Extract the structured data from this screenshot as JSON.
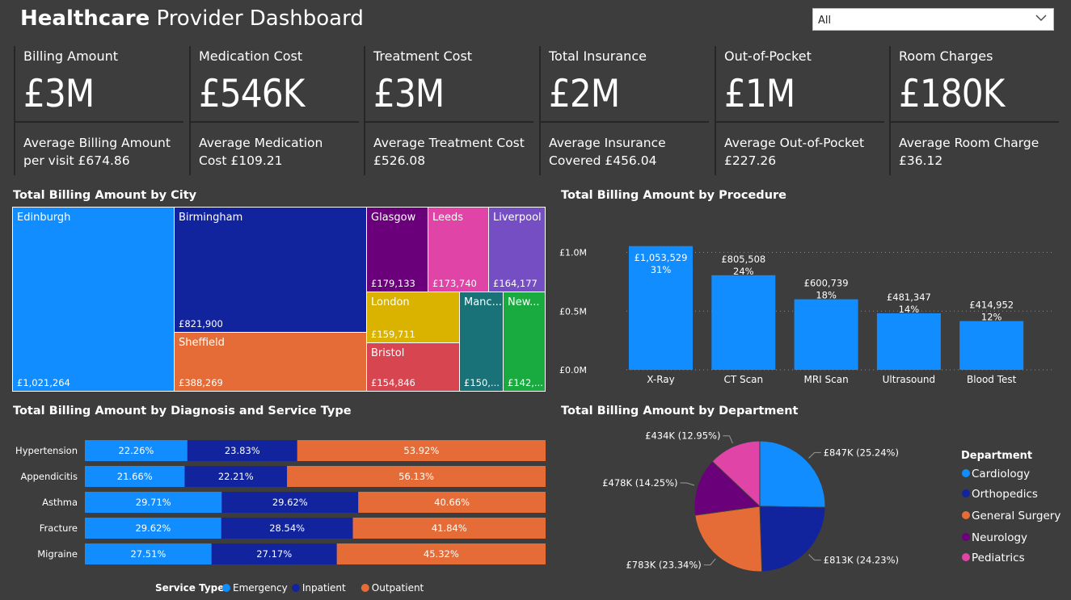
{
  "header": {
    "title_bold": "Healthcare",
    "title_rest": " Provider Dashboard",
    "slicer_value": "All"
  },
  "kpis": [
    {
      "label": "Billing Amount",
      "value": "£3M",
      "sub": "Average Billing Amount per visit £674.86"
    },
    {
      "label": "Medication Cost",
      "value": "£546K",
      "sub": "Average Medication Cost £109.21"
    },
    {
      "label": "Treatment Cost",
      "value": "£3M",
      "sub": "Average Treatment Cost £526.08"
    },
    {
      "label": "Total Insurance",
      "value": "£2M",
      "sub": "Average Insurance Covered £456.04"
    },
    {
      "label": "Out-of-Pocket",
      "value": "£1M",
      "sub": "Average Out-of-Pocket £227.26"
    },
    {
      "label": "Room Charges",
      "value": "£180K",
      "sub": "Average Room Charge £36.12"
    }
  ],
  "colors": {
    "edinburgh": "#118dff",
    "birmingham": "#12239e",
    "sheffield": "#e66c37",
    "glasgow": "#6b007b",
    "leeds": "#e044a7",
    "liverpool": "#744ec2",
    "london": "#d9b300",
    "bristol": "#d64550",
    "manchester": "#197278",
    "newcastle": "#1aab40",
    "emergency": "#118dff",
    "inpatient": "#12239e",
    "outpatient": "#e66c37"
  },
  "chart_data": [
    {
      "type": "treemap",
      "title": "Total Billing Amount by City",
      "items": [
        {
          "name": "Edinburgh",
          "value": 1021264,
          "label": "£1,021,264"
        },
        {
          "name": "Birmingham",
          "value": 821900,
          "label": "£821,900"
        },
        {
          "name": "Sheffield",
          "value": 388269,
          "label": "£388,269"
        },
        {
          "name": "Glasgow",
          "value": 179133,
          "label": "£179,133"
        },
        {
          "name": "Leeds",
          "value": 173740,
          "label": "£173,740"
        },
        {
          "name": "Liverpool",
          "value": 164177,
          "label": "£164,177"
        },
        {
          "name": "London",
          "value": 159711,
          "label": "£159,711"
        },
        {
          "name": "Bristol",
          "value": 154846,
          "label": "£154,846"
        },
        {
          "name": "Manc...",
          "value": 150000,
          "label": "£150,..."
        },
        {
          "name": "New...",
          "value": 142000,
          "label": "£142,..."
        }
      ]
    },
    {
      "type": "bar",
      "title": "Total Billing Amount by Procedure",
      "categories": [
        "X-Ray",
        "CT Scan",
        "MRI Scan",
        "Ultrasound",
        "Blood Test"
      ],
      "values": [
        1053529,
        805508,
        600739,
        481347,
        414952
      ],
      "value_labels": [
        "£1,053,529",
        "£805,508",
        "£600,739",
        "£481,347",
        "£414,952"
      ],
      "pct_labels": [
        "31%",
        "24%",
        "18%",
        "14%",
        "12%"
      ],
      "yticks": [
        0,
        500000,
        1000000
      ],
      "ytick_labels": [
        "£0.0M",
        "£0.5M",
        "£1.0M"
      ],
      "ylim": [
        0,
        1100000
      ],
      "color": "#118dff"
    },
    {
      "type": "bar",
      "stacked": "100%",
      "orientation": "horizontal",
      "title": "Total Billing Amount by Diagnosis and Service Type",
      "categories": [
        "Hypertension",
        "Appendicitis",
        "Asthma",
        "Fracture",
        "Migraine"
      ],
      "series": [
        {
          "name": "Emergency",
          "values": [
            22.26,
            21.66,
            29.71,
            29.62,
            27.51
          ]
        },
        {
          "name": "Inpatient",
          "values": [
            23.83,
            22.21,
            29.62,
            28.54,
            27.17
          ]
        },
        {
          "name": "Outpatient",
          "values": [
            53.92,
            56.13,
            40.66,
            41.84,
            45.32
          ]
        }
      ],
      "legend_title": "Service Type"
    },
    {
      "type": "pie",
      "title": "Total Billing Amount by Department",
      "legend_title": "Department",
      "slices": [
        {
          "name": "Cardiology",
          "value": 847,
          "pct": 25.24,
          "label": "£847K (25.24%)",
          "color": "#118dff"
        },
        {
          "name": "Orthopedics",
          "value": 813,
          "pct": 24.23,
          "label": "£813K (24.23%)",
          "color": "#12239e"
        },
        {
          "name": "General Surgery",
          "value": 783,
          "pct": 23.34,
          "label": "£783K (23.34%)",
          "color": "#e66c37"
        },
        {
          "name": "Neurology",
          "value": 478,
          "pct": 14.25,
          "label": "£478K (14.25%)",
          "color": "#6b007b"
        },
        {
          "name": "Pediatrics",
          "value": 434,
          "pct": 12.95,
          "label": "£434K (12.95%)",
          "color": "#e044a7"
        }
      ]
    }
  ]
}
